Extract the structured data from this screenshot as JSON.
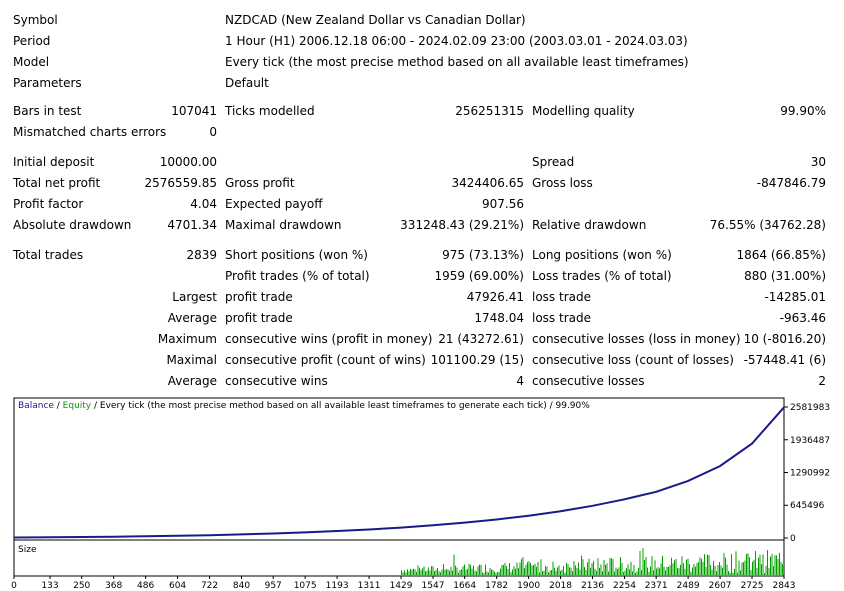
{
  "header": {
    "symbol_label": "Symbol",
    "symbol_value": "NZDCAD (New Zealand Dollar vs Canadian Dollar)",
    "period_label": "Period",
    "period_value": "1 Hour (H1) 2006.12.18 06:00 - 2024.02.09 23:00 (2003.03.01 - 2024.03.03)",
    "model_label": "Model",
    "model_value": "Every tick (the most precise method based on all available least timeframes)",
    "parameters_label": "Parameters",
    "parameters_value": "Default"
  },
  "stats": {
    "bars_label": "Bars in test",
    "bars_value": "107041",
    "ticks_label": "Ticks modelled",
    "ticks_value": "256251315",
    "quality_label": "Modelling quality",
    "quality_value": "99.90%",
    "mismatch_label": "Mismatched charts errors",
    "mismatch_value": "0",
    "deposit_label": "Initial deposit",
    "deposit_value": "10000.00",
    "spread_label": "Spread",
    "spread_value": "30",
    "netprofit_label": "Total net profit",
    "netprofit_value": "2576559.85",
    "grossprofit_label": "Gross profit",
    "grossprofit_value": "3424406.65",
    "grossloss_label": "Gross loss",
    "grossloss_value": "-847846.79",
    "pf_label": "Profit factor",
    "pf_value": "4.04",
    "payoff_label": "Expected payoff",
    "payoff_value": "907.56",
    "absdd_label": "Absolute drawdown",
    "absdd_value": "4701.34",
    "maxdd_label": "Maximal drawdown",
    "maxdd_value": "331248.43 (29.21%)",
    "reldd_label": "Relative drawdown",
    "reldd_value": "76.55% (34762.28)",
    "trades_label": "Total trades",
    "trades_value": "2839",
    "short_label": "Short positions (won %)",
    "short_value": "975 (73.13%)",
    "long_label": "Long positions (won %)",
    "long_value": "1864 (66.85%)",
    "ptrades_label": "Profit trades (% of total)",
    "ptrades_value": "1959 (69.00%)",
    "ltrades_label": "Loss trades (% of total)",
    "ltrades_value": "880 (31.00%)",
    "largest_label": "Largest",
    "largest_pt_label": "profit trade",
    "largest_pt_value": "47926.41",
    "largest_lt_label": "loss trade",
    "largest_lt_value": "-14285.01",
    "average_label": "Average",
    "average_pt_label": "profit trade",
    "average_pt_value": "1748.04",
    "average_lt_label": "loss trade",
    "average_lt_value": "-963.46",
    "maximum_label": "Maximum",
    "max_cw_label": "consecutive wins (profit in money)",
    "max_cw_value": "21 (43272.61)",
    "max_cl_label": "consecutive losses (loss in money)",
    "max_cl_value": "10 (-8016.20)",
    "maximal_label": "Maximal",
    "mxl_cp_label": "consecutive profit (count of wins)",
    "mxl_cp_value": "101100.29 (15)",
    "mxl_cl_label": "consecutive loss (count of losses)",
    "mxl_cl_value": "-57448.41 (6)",
    "avg2_label": "Average",
    "avg_cw_label": "consecutive wins",
    "avg_cw_value": "4",
    "avg_cl_label": "consecutive losses",
    "avg_cl_value": "2"
  },
  "chart_data": {
    "type": "line",
    "legend": {
      "balance": "Balance",
      "sep1": " / ",
      "equity": "Equity",
      "rest": " / Every tick (the most precise method based on all available least timeframes to generate each tick) / 99.90%"
    },
    "colors": {
      "balance": "#1a1a8c",
      "equity": "#00a000",
      "size": "#00a000"
    },
    "y_ticks": [
      0,
      645496,
      1290992,
      1936487,
      2581983
    ],
    "x_ticks": [
      0,
      133,
      250,
      368,
      486,
      604,
      722,
      840,
      957,
      1075,
      1193,
      1311,
      1429,
      1547,
      1664,
      1782,
      1900,
      2018,
      2136,
      2254,
      2371,
      2489,
      2607,
      2725,
      2843
    ],
    "xlim": [
      0,
      2843
    ],
    "ylim": [
      0,
      2581983
    ],
    "balance": {
      "x": [
        0,
        133,
        250,
        368,
        486,
        604,
        722,
        840,
        957,
        1075,
        1193,
        1311,
        1429,
        1547,
        1664,
        1782,
        1900,
        2018,
        2136,
        2254,
        2371,
        2489,
        2607,
        2725,
        2843
      ],
      "y": [
        10000,
        14000,
        19000,
        25000,
        33000,
        43000,
        55000,
        70000,
        88000,
        110000,
        137000,
        168000,
        205000,
        250000,
        303000,
        365000,
        440000,
        528000,
        635000,
        763000,
        910000,
        1125000,
        1420000,
        1860000,
        2576560
      ]
    },
    "size_panel_label": "Size",
    "size_start_index": 1429
  }
}
